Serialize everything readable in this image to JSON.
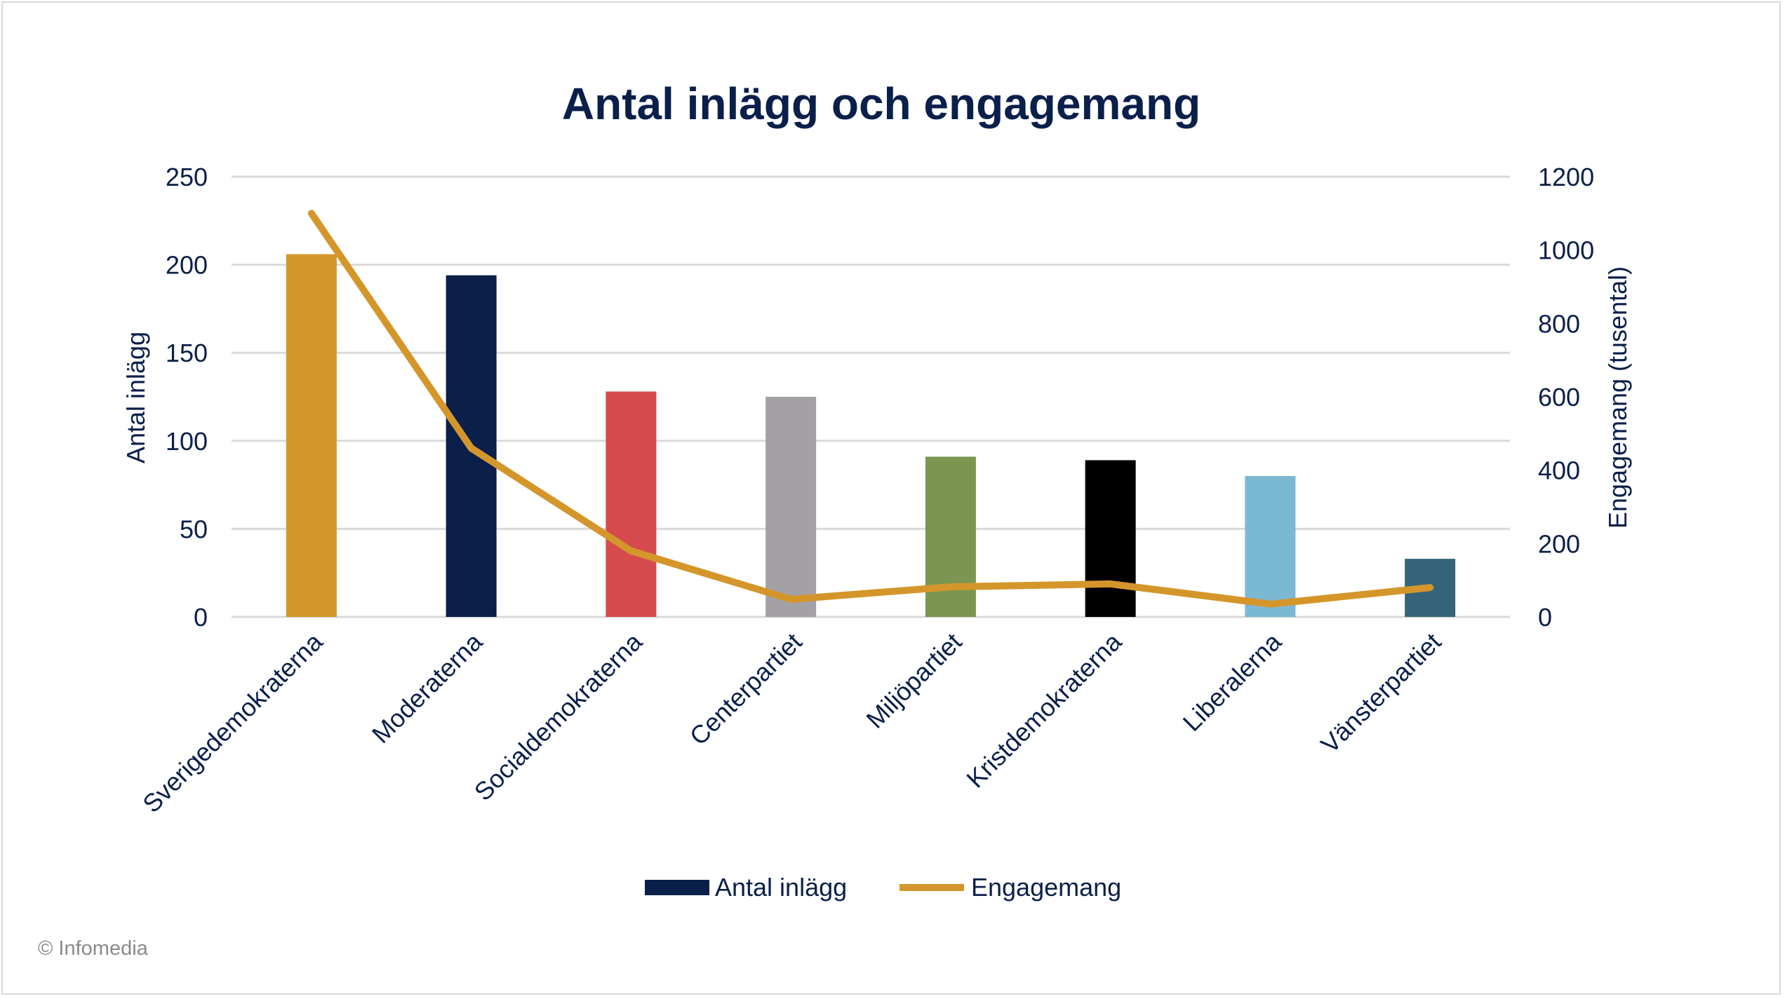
{
  "chart_data": {
    "type": "bar+line",
    "title": "Antal inlägg och engagemang",
    "categories": [
      "Sverigedemokraterna",
      "Moderaterna",
      "Socialdemokraterna",
      "Centerpartiet",
      "Miljöpartiet",
      "Kristdemokraterna",
      "Liberalerna",
      "Vänsterpartiet"
    ],
    "series": [
      {
        "name": "Antal inlägg",
        "type": "bar",
        "axis": "left",
        "values": [
          206,
          194,
          128,
          125,
          91,
          89,
          80,
          33
        ],
        "colors": [
          "#D4962B",
          "#0A1F4A",
          "#D64A4D",
          "#A3A1A6",
          "#7A9650",
          "#000000",
          "#7BB8D4",
          "#35647A"
        ],
        "legend_color": "#0A1F4A"
      },
      {
        "name": "Engagemang",
        "type": "line",
        "axis": "right",
        "values": [
          1100,
          460,
          180,
          48,
          82,
          90,
          35,
          80
        ],
        "color": "#D4962B"
      }
    ],
    "y_left": {
      "label": "Antal inlägg",
      "min": 0,
      "max": 250,
      "ticks": [
        0,
        50,
        100,
        150,
        200,
        250
      ]
    },
    "y_right": {
      "label": "Engagemang (tusental)",
      "min": 0,
      "max": 1200,
      "ticks": [
        0,
        200,
        400,
        600,
        800,
        1000,
        1200
      ]
    },
    "grid": true,
    "legend_position": "bottom",
    "text_color": "#0A1F4A",
    "grid_color": "#d9d9d9"
  },
  "footer": {
    "copyright": "© Infomedia"
  }
}
